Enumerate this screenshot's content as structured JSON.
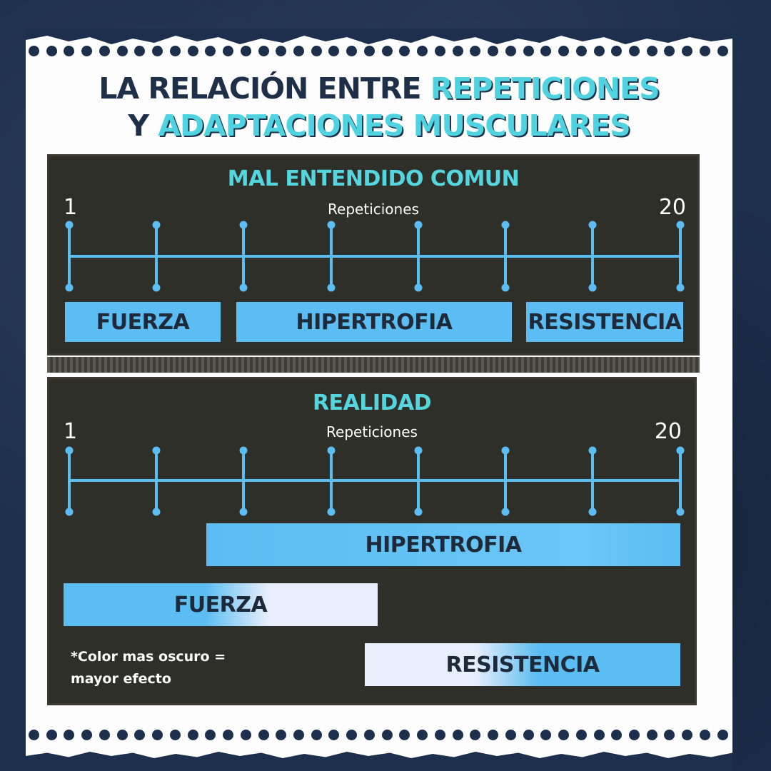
{
  "title": {
    "line1_plain": "LA RELACIÓN ENTRE ",
    "line1_highlight": "REPETICIONES",
    "line2_plain": "Y ",
    "line2_highlight": "ADAPTACIONES MUSCULARES"
  },
  "panel1": {
    "heading": "MAL ENTENDIDO COMUN",
    "axis_label": "Repeticiones",
    "axis_min": "1",
    "axis_max": "20",
    "bars": [
      {
        "label": "FUERZA"
      },
      {
        "label": "HIPERTROFIA"
      },
      {
        "label": "RESISTENCIA"
      }
    ]
  },
  "panel2": {
    "heading": "REALIDAD",
    "axis_label": "Repeticiones",
    "axis_min": "1",
    "axis_max": "20",
    "bars": [
      {
        "label": "HIPERTROFIA"
      },
      {
        "label": "FUERZA"
      },
      {
        "label": "RESISTENCIA"
      }
    ],
    "note": "*Color mas oscuro = mayor efecto"
  },
  "colors": {
    "accent": "#4fd3e0",
    "bar_blue": "#5bbdf2",
    "bar_light": "#e8eefb",
    "panel_bg": "#2f2f29",
    "title_dark": "#1e3049",
    "background": "#1c2f4d"
  }
}
